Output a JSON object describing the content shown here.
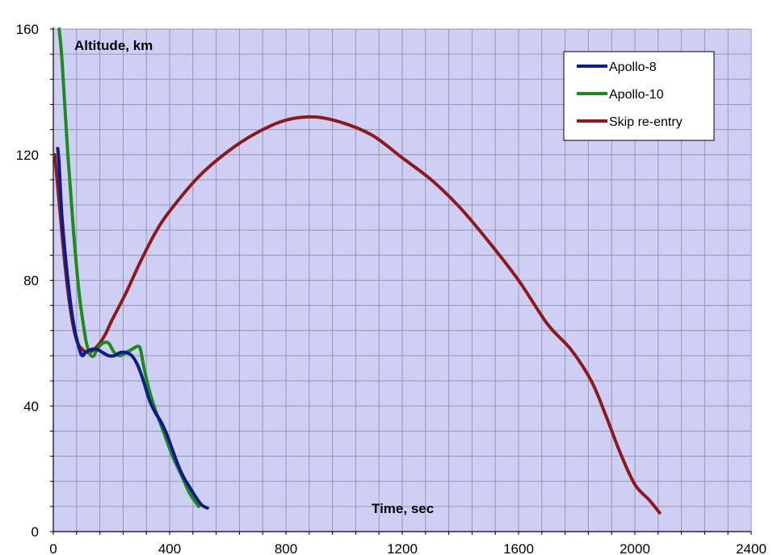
{
  "chart_data": {
    "type": "line",
    "ylabel": "Altitude, km",
    "xlabel": "Time, sec",
    "xlim": [
      0,
      2400
    ],
    "ylim": [
      0,
      160
    ],
    "x_ticks": [
      0,
      400,
      800,
      1200,
      1600,
      2000,
      2400
    ],
    "y_ticks": [
      0,
      40,
      80,
      120,
      160
    ],
    "x_minor_step": 80,
    "y_minor_step": 8,
    "grid": true,
    "legend_position": "top-right",
    "background_color": "#cfcff5",
    "grid_color": "#9696ae",
    "series": [
      {
        "name": "Apollo-8",
        "color": "#0f1a8c",
        "x": [
          15,
          20,
          30,
          50,
          70,
          90,
          100,
          110,
          130,
          150,
          170,
          190,
          210,
          230,
          250,
          270,
          290,
          310,
          330,
          350,
          370,
          390,
          410,
          430,
          450,
          470,
          490,
          510,
          530
        ],
        "y": [
          122,
          117,
          100,
          80,
          66,
          58,
          56,
          57,
          58,
          58,
          57,
          56,
          56,
          57,
          57,
          56,
          53,
          48,
          42,
          38,
          35,
          31,
          26,
          21,
          17,
          14,
          11,
          8.5,
          7.5
        ]
      },
      {
        "name": "Apollo-10",
        "color": "#1a8c1a",
        "x": [
          20,
          30,
          50,
          70,
          90,
          110,
          120,
          130,
          140,
          150,
          170,
          190,
          210,
          230,
          250,
          270,
          290,
          300,
          310,
          330,
          350,
          370,
          390,
          410,
          430,
          450,
          470,
          500
        ],
        "y": [
          160,
          150,
          120,
          95,
          75,
          62,
          58,
          56,
          56,
          58,
          60,
          60,
          57,
          56,
          57,
          58,
          59,
          58,
          53,
          45,
          39,
          34,
          29,
          24,
          20,
          16,
          12,
          8
        ]
      },
      {
        "name": "Skip re-entry",
        "color": "#8c1a1a",
        "x": [
          5,
          20,
          40,
          60,
          80,
          100,
          120,
          140,
          160,
          180,
          200,
          250,
          300,
          350,
          400,
          500,
          600,
          700,
          800,
          900,
          1000,
          1100,
          1200,
          1300,
          1400,
          1500,
          1600,
          1700,
          1780,
          1850,
          1900,
          1950,
          2000,
          2050,
          2085
        ],
        "y": [
          120,
          105,
          85,
          70,
          61,
          58,
          57,
          58,
          60,
          63,
          67,
          76,
          86,
          95,
          102,
          113,
          121,
          127,
          131,
          132,
          130,
          126,
          119,
          112,
          103,
          92,
          80,
          66,
          58,
          48,
          37,
          25,
          15,
          10,
          6
        ]
      }
    ]
  }
}
